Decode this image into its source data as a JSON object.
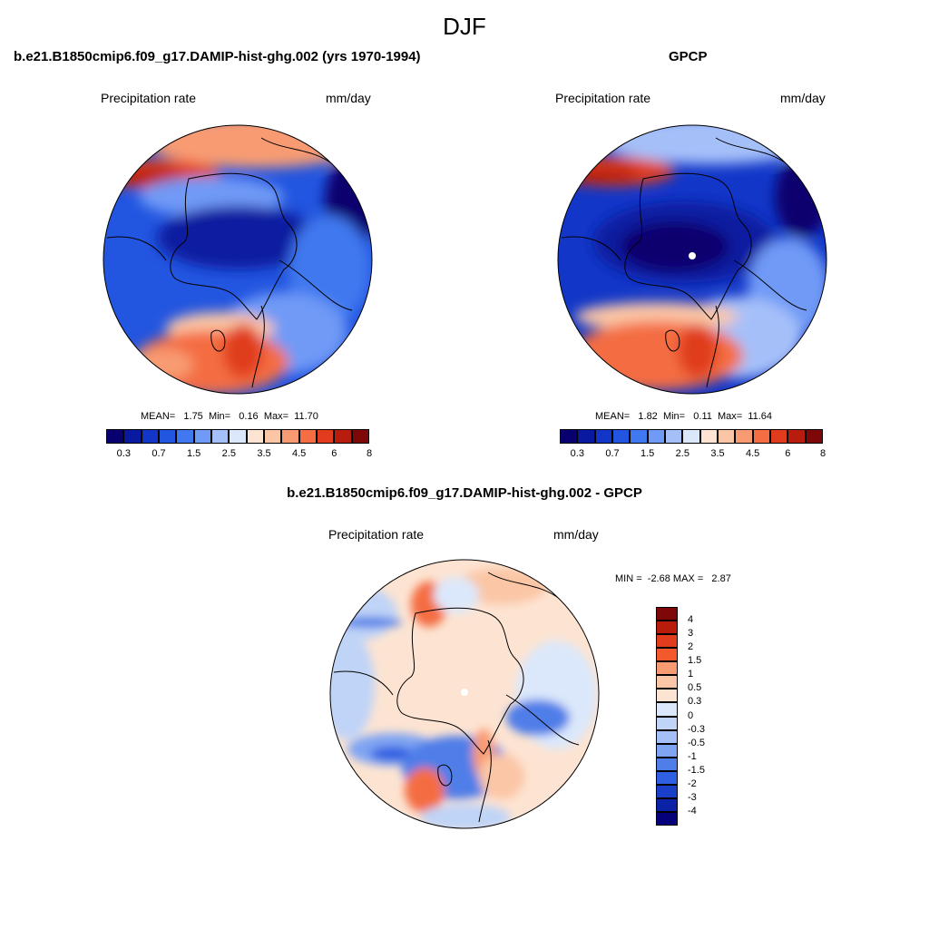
{
  "season": "DJF",
  "panels": {
    "model": {
      "title": "b.e21.B1850cmip6.f09_g17.DAMIP-hist-ghg.002 (yrs 1970-1994)",
      "left_label": "Precipitation rate",
      "right_label": "mm/day",
      "stats": {
        "mean_label": "MEAN=",
        "mean": "1.75",
        "min_label": "Min=",
        "min": "0.16",
        "max_label": "Max=",
        "max": "11.70"
      }
    },
    "obs": {
      "title": "GPCP",
      "left_label": "Precipitation rate",
      "right_label": "mm/day",
      "stats": {
        "mean_label": "MEAN=",
        "mean": "1.82",
        "min_label": "Min=",
        "min": "0.11",
        "max_label": "Max=",
        "max": "11.64"
      }
    },
    "diff": {
      "title": "b.e21.B1850cmip6.f09_g17.DAMIP-hist-ghg.002 - GPCP",
      "left_label": "Precipitation rate",
      "right_label": "mm/day",
      "minmax": {
        "min_label": "MIN =",
        "min": "-2.68",
        "max_label": "MAX =",
        "max": "2.87"
      }
    }
  },
  "colorbar_abs": {
    "colors": [
      "#08006e",
      "#0a1aa0",
      "#1237c8",
      "#2255e0",
      "#3f78ef",
      "#6f9af6",
      "#a5c0f9",
      "#dbe8fb",
      "#fde4d2",
      "#fbc6a6",
      "#f89b72",
      "#f46d43",
      "#e03c1d",
      "#b71c0c",
      "#7e0707"
    ],
    "labels": [
      "0.3",
      "0.7",
      "1.5",
      "2.5",
      "3.5",
      "4.5",
      "6",
      "8"
    ]
  },
  "colorbar_diff": {
    "colors": [
      "#7e0707",
      "#b71c0c",
      "#e03c1d",
      "#f4592e",
      "#f89b72",
      "#fbc6a6",
      "#fde4d2",
      "#dbe8fb",
      "#c0d4f7",
      "#a5c0f9",
      "#7fa4f2",
      "#4f7ee8",
      "#2f5fe2",
      "#1a3fc8",
      "#0c22a6",
      "#06007a"
    ],
    "labels": [
      "4",
      "3",
      "2",
      "1.5",
      "1",
      "0.5",
      "0.3",
      "0",
      "-0.3",
      "-0.5",
      "-1",
      "-1.5",
      "-2",
      "-3",
      "-4"
    ]
  },
  "colors": {
    "warm": "#f46d43",
    "cool": "#1237c8",
    "background": "#ffffff"
  }
}
